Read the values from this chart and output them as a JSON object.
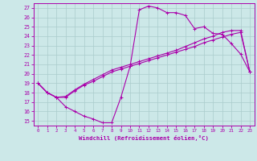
{
  "xlabel": "Windchill (Refroidissement éolien,°C)",
  "background_color": "#cce8e8",
  "grid_color": "#aacccc",
  "line_color": "#aa00aa",
  "xlim": [
    -0.5,
    23.5
  ],
  "ylim": [
    14.5,
    27.5
  ],
  "xticks": [
    0,
    1,
    2,
    3,
    4,
    5,
    6,
    7,
    8,
    9,
    10,
    11,
    12,
    13,
    14,
    15,
    16,
    17,
    18,
    19,
    20,
    21,
    22,
    23
  ],
  "yticks": [
    15,
    16,
    17,
    18,
    19,
    20,
    21,
    22,
    23,
    24,
    25,
    26,
    27
  ],
  "line1_x": [
    0,
    1,
    2,
    3,
    4,
    5,
    6,
    7,
    8,
    9,
    10,
    11,
    12,
    13,
    14,
    15,
    16,
    17,
    18,
    19,
    20,
    21,
    22,
    23
  ],
  "line1_y": [
    19.0,
    18.0,
    17.5,
    16.5,
    16.0,
    15.5,
    15.2,
    14.8,
    14.8,
    17.5,
    20.8,
    26.8,
    27.2,
    27.0,
    26.5,
    26.5,
    26.2,
    24.8,
    25.0,
    24.3,
    24.2,
    23.2,
    22.1,
    20.2
  ],
  "line2_x": [
    0,
    1,
    2,
    3,
    4,
    5,
    6,
    7,
    8,
    9,
    10,
    11,
    12,
    13,
    14,
    15,
    16,
    17,
    18,
    19,
    20,
    21,
    22,
    23
  ],
  "line2_y": [
    19.0,
    18.0,
    17.5,
    17.5,
    18.2,
    18.8,
    19.2,
    19.7,
    20.2,
    20.5,
    20.8,
    21.1,
    21.4,
    21.7,
    22.0,
    22.3,
    22.6,
    22.9,
    23.3,
    23.6,
    23.9,
    24.2,
    24.4,
    20.2
  ],
  "line3_x": [
    0,
    1,
    2,
    3,
    4,
    5,
    6,
    7,
    8,
    9,
    10,
    11,
    12,
    13,
    14,
    15,
    16,
    17,
    18,
    19,
    20,
    21,
    22,
    23
  ],
  "line3_y": [
    19.0,
    18.0,
    17.5,
    17.6,
    18.3,
    18.9,
    19.4,
    19.9,
    20.4,
    20.7,
    21.0,
    21.3,
    21.6,
    21.9,
    22.2,
    22.5,
    22.9,
    23.3,
    23.7,
    24.0,
    24.4,
    24.6,
    24.6,
    20.2
  ]
}
